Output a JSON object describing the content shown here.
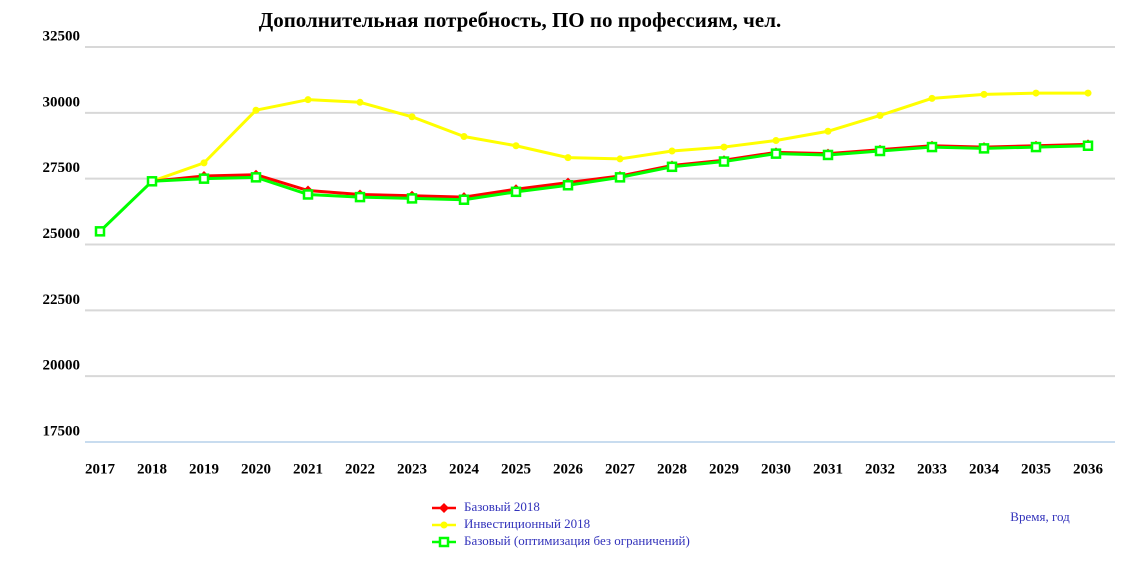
{
  "chart_data": {
    "type": "line",
    "title": "Дополнительная потребность, ПО по профессиям, чел.",
    "x_label": "Время, год",
    "categories": [
      "2017",
      "2018",
      "2019",
      "2020",
      "2021",
      "2022",
      "2023",
      "2024",
      "2025",
      "2026",
      "2027",
      "2028",
      "2029",
      "2030",
      "2031",
      "2032",
      "2033",
      "2034",
      "2035",
      "2036"
    ],
    "series": [
      {
        "name": "Базовый 2018",
        "color": "#ff0000",
        "marker": "diamond",
        "values": [
          null,
          27400,
          27600,
          27650,
          27050,
          26900,
          26850,
          26800,
          27100,
          27350,
          27600,
          28000,
          28200,
          28500,
          28450,
          28600,
          28750,
          28700,
          28750,
          28800
        ]
      },
      {
        "name": "Инвестиционный 2018",
        "color": "#ffff00",
        "marker": "circle",
        "values": [
          null,
          27400,
          28100,
          30100,
          30500,
          30400,
          29850,
          29100,
          28750,
          28300,
          28250,
          28550,
          28700,
          28950,
          29300,
          29900,
          30550,
          30700,
          30750,
          30750
        ]
      },
      {
        "name": "Базовый (оптимизация без ограничений)",
        "color": "#00ff00",
        "marker": "square",
        "values": [
          25500,
          27400,
          27500,
          27550,
          26900,
          26800,
          26750,
          26700,
          27000,
          27250,
          27550,
          27950,
          28150,
          28450,
          28400,
          28550,
          28700,
          28650,
          28700,
          28750
        ]
      }
    ],
    "ylim": [
      17500,
      32500
    ],
    "yticks": [
      17500,
      20000,
      22500,
      25000,
      27500,
      30000,
      32500
    ],
    "grid": true
  }
}
